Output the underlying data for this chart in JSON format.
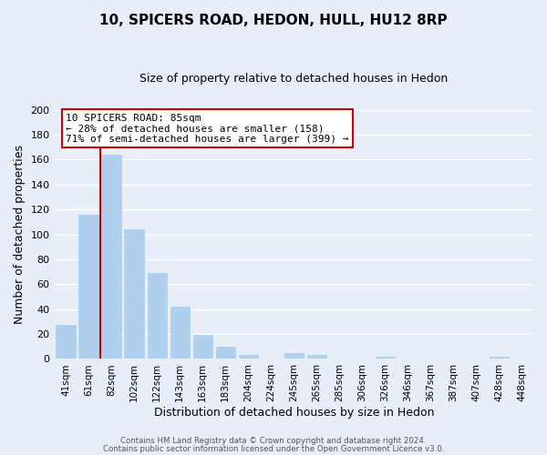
{
  "title": "10, SPICERS ROAD, HEDON, HULL, HU12 8RP",
  "subtitle": "Size of property relative to detached houses in Hedon",
  "xlabel": "Distribution of detached houses by size in Hedon",
  "ylabel": "Number of detached properties",
  "bar_labels": [
    "41sqm",
    "61sqm",
    "82sqm",
    "102sqm",
    "122sqm",
    "143sqm",
    "163sqm",
    "183sqm",
    "204sqm",
    "224sqm",
    "245sqm",
    "265sqm",
    "285sqm",
    "306sqm",
    "326sqm",
    "346sqm",
    "367sqm",
    "387sqm",
    "407sqm",
    "428sqm",
    "448sqm"
  ],
  "bar_values": [
    27,
    116,
    164,
    104,
    69,
    42,
    19,
    10,
    3,
    0,
    5,
    3,
    0,
    0,
    2,
    0,
    0,
    0,
    0,
    2,
    0
  ],
  "bar_color": "#aed0ee",
  "bar_edge_color": "#aed0ee",
  "property_line_color": "#cc0000",
  "annotation_title": "10 SPICERS ROAD: 85sqm",
  "annotation_line1": "← 28% of detached houses are smaller (158)",
  "annotation_line2": "71% of semi-detached houses are larger (399) →",
  "annotation_box_color": "#ffffff",
  "annotation_box_edge": "#cc0000",
  "ylim": [
    0,
    200
  ],
  "yticks": [
    0,
    20,
    40,
    60,
    80,
    100,
    120,
    140,
    160,
    180,
    200
  ],
  "background_color": "#e8eef8",
  "grid_color": "#ffffff",
  "footer1": "Contains HM Land Registry data © Crown copyright and database right 2024.",
  "footer2": "Contains public sector information licensed under the Open Government Licence v3.0."
}
